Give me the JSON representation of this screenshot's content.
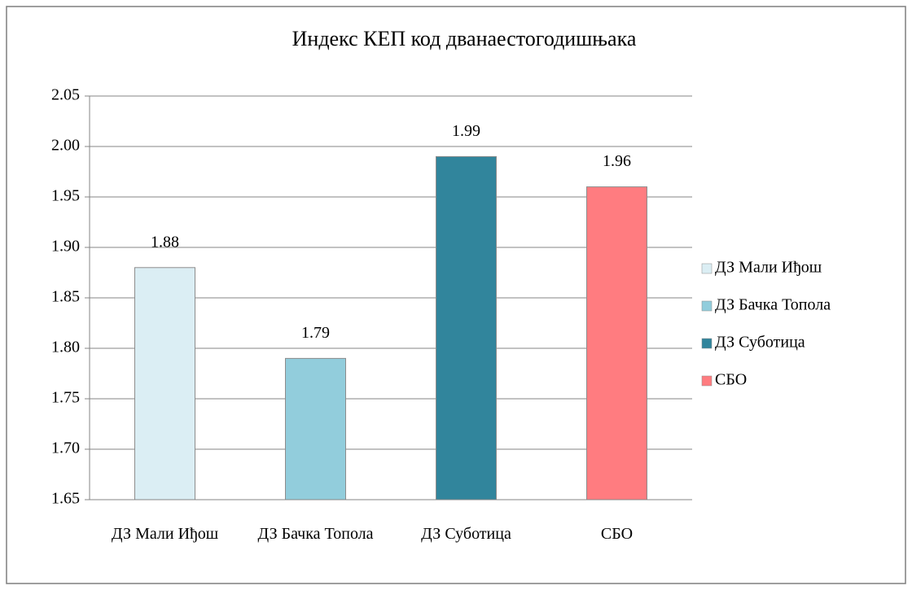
{
  "chart_data": {
    "type": "bar",
    "title": "Индекс КЕП код дванаестогодишњака",
    "categories": [
      "ДЗ Мали Иђош",
      "ДЗ Бачка Топола",
      "ДЗ Суботица",
      "СБО"
    ],
    "values": [
      1.88,
      1.79,
      1.99,
      1.96
    ],
    "colors": [
      "#dbeef4",
      "#92cddc",
      "#31859c",
      "#ff7c80"
    ],
    "ylim": [
      1.65,
      2.05
    ],
    "yticks": [
      1.65,
      {
        "value": 1.7,
        "label": "1.70"
      },
      1.75,
      {
        "value": 1.8,
        "label": "1.80"
      },
      1.85,
      {
        "value": 1.9,
        "label": "1.90"
      },
      1.95,
      {
        "value": 2.0,
        "label": "2.00"
      },
      2.05
    ],
    "grid": true,
    "legend": "right"
  }
}
